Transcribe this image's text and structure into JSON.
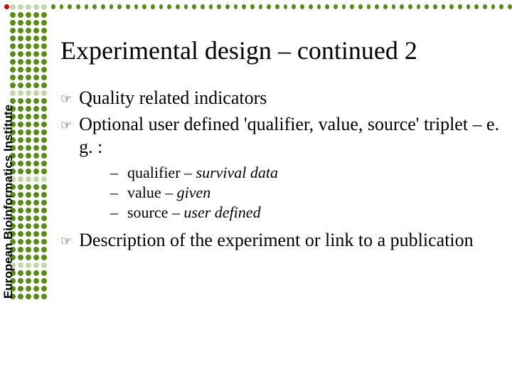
{
  "brand": {
    "vertical_label": "European Bioinformatics Institute",
    "accent_color": "#5a8a1a",
    "red_dot_color": "#cc0000"
  },
  "slide": {
    "title": "Experimental design – continued 2",
    "bullets": [
      {
        "text": "Quality related indicators"
      },
      {
        "text": "Optional user defined 'qualifier, value, source' triplet – e. g. :",
        "sub": [
          {
            "label": "qualifier – ",
            "italic": "survival data"
          },
          {
            "label": "value – ",
            "italic": "given"
          },
          {
            "label": "source – ",
            "italic": "user defined"
          }
        ]
      },
      {
        "text": "Description of the experiment or link to a publication"
      }
    ]
  },
  "style": {
    "title_fontsize": 36,
    "body_fontsize": 26,
    "sub_fontsize": 22,
    "background": "#ffffff",
    "text_color": "#000000"
  }
}
